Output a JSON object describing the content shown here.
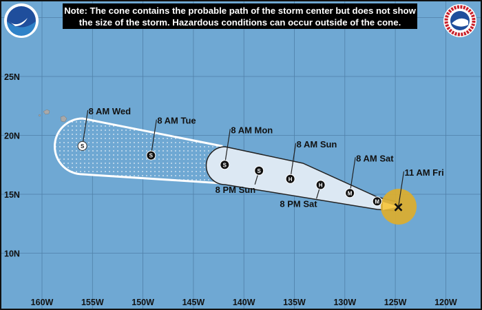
{
  "note": {
    "line1": "Note: The cone contains the probable path of the storm center but does not show",
    "line2": "the size of the storm. Hazardous conditions can occur outside of the cone."
  },
  "logos": {
    "left": "NOAA",
    "right": "NATIONAL WEATHER SERVICE"
  },
  "colors": {
    "ocean": "#6fa8d3",
    "grid": "#4f7fa8",
    "cone_fill": "#dce8f3",
    "current_wind": "#d9ad32",
    "land": "#a9a9a9"
  },
  "axes": {
    "longitude_labels": [
      "160W",
      "155W",
      "150W",
      "145W",
      "140W",
      "135W",
      "130W",
      "125W",
      "120W"
    ],
    "longitudes": [
      -160,
      -155,
      -150,
      -145,
      -140,
      -135,
      -130,
      -125,
      -120
    ],
    "latitude_labels": [
      "25N",
      "20N",
      "15N",
      "10N"
    ],
    "latitudes": [
      25,
      20,
      15,
      10
    ]
  },
  "map_label": "HI",
  "track": [
    {
      "label": "11 AM Fri",
      "marker": "X",
      "lon": -124.7,
      "lat": 13.9,
      "label_side": "above"
    },
    {
      "label": "",
      "marker": "M",
      "lon": -126.8,
      "lat": 14.4
    },
    {
      "label": "8 AM Sat",
      "marker": "M",
      "lon": -129.5,
      "lat": 15.1,
      "label_side": "above"
    },
    {
      "label": "8 PM Sat",
      "marker": "H",
      "lon": -132.4,
      "lat": 15.8,
      "label_side": "below"
    },
    {
      "label": "8 AM Sun",
      "marker": "H",
      "lon": -135.4,
      "lat": 16.3,
      "label_side": "above"
    },
    {
      "label": "8 PM Sun",
      "marker": "S",
      "lon": -138.5,
      "lat": 17.0,
      "label_side": "below"
    },
    {
      "label": "8 AM Mon",
      "marker": "S",
      "lon": -141.9,
      "lat": 17.5,
      "label_side": "above"
    },
    {
      "label": "8 AM Tue",
      "marker": "S",
      "lon": -149.2,
      "lat": 18.3,
      "label_side": "above"
    },
    {
      "label": "8 AM Wed",
      "marker": "S",
      "lon": -156.0,
      "lat": 19.1,
      "label_side": "above",
      "post_tropical": true
    }
  ]
}
